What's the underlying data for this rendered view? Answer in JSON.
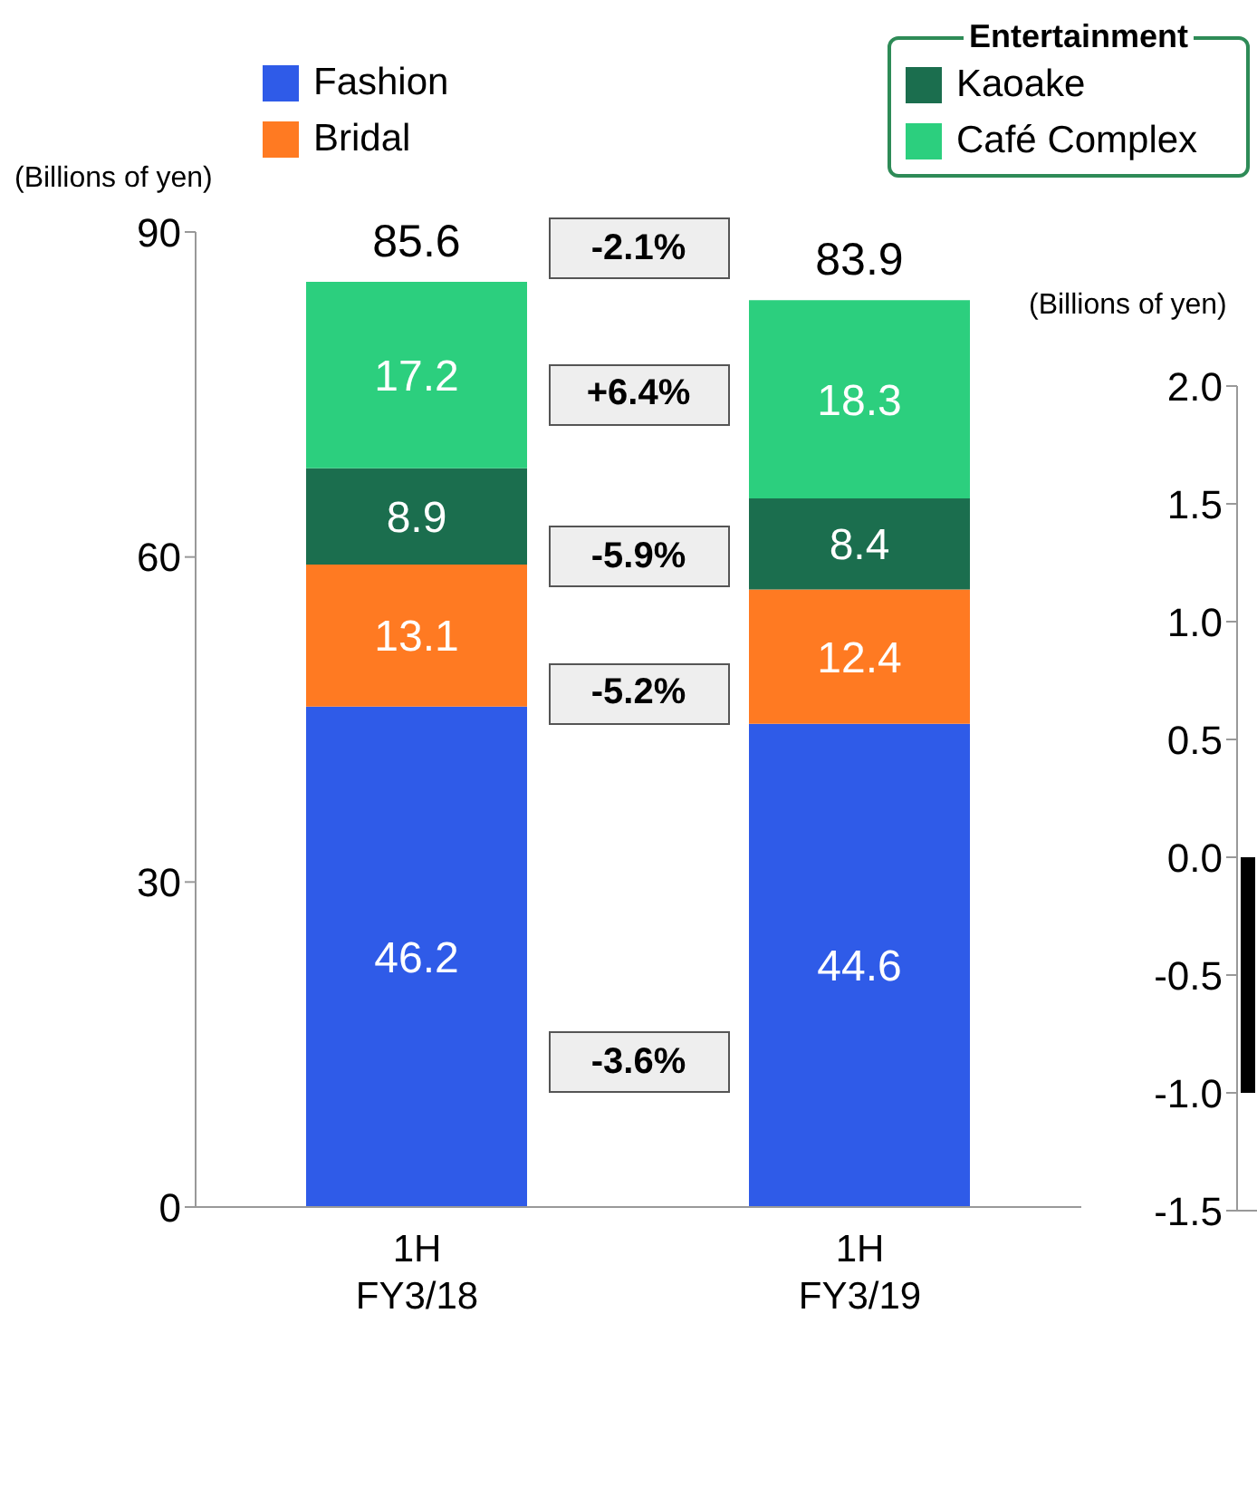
{
  "chart_data": [
    {
      "type": "bar",
      "stacked": true,
      "ylabel": "(Billions of yen)",
      "legend_title": "Entertainment",
      "legend": "top",
      "data_labels": true,
      "categories": [
        "1H\nFY3/18",
        "1H\nFY3/19"
      ],
      "series": [
        {
          "name": "Fashion",
          "color": "#2f5be8",
          "values": [
            46.2,
            44.6
          ]
        },
        {
          "name": "Bridal",
          "color": "#ff7a22",
          "values": [
            13.1,
            12.4
          ]
        },
        {
          "name": "Kaoake",
          "color": "#1b6e4e",
          "values": [
            8.9,
            8.4
          ]
        },
        {
          "name": "Café Complex",
          "color": "#2ccf7e",
          "values": [
            17.2,
            18.3
          ]
        }
      ],
      "totals": [
        "85.6",
        "83.9"
      ],
      "annotations": [
        "-2.1%",
        "+6.4%",
        "-5.9%",
        "-5.2%",
        "-3.6%"
      ],
      "ylim": [
        0,
        90
      ],
      "yticks": [
        0,
        30,
        60,
        90
      ]
    },
    {
      "type": "bar",
      "ylabel": "(Billions of yen)",
      "categories": [
        null
      ],
      "series": [
        {
          "color": "#000000",
          "values": [
            -1.0
          ]
        }
      ],
      "ylim": [
        -1.5,
        2
      ],
      "yticks": [
        {
          "value": -1.5,
          "label": "-1.5"
        },
        {
          "value": -1,
          "label": "-1.0"
        },
        {
          "value": -0.5,
          "label": "-0.5"
        },
        {
          "value": 0,
          "label": "0.0"
        },
        {
          "value": 0.5,
          "label": "0.5"
        },
        {
          "value": 1,
          "label": "1.0"
        },
        {
          "value": 1.5,
          "label": "1.5"
        },
        {
          "value": 2,
          "label": "2.0"
        }
      ]
    }
  ]
}
